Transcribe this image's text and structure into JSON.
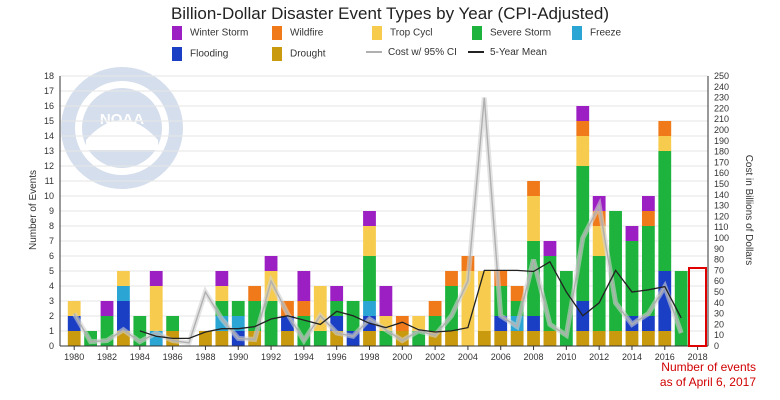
{
  "chart_data": {
    "type": "bar",
    "title": "Billion-Dollar Disaster Event Types by Year (CPI-Adjusted)",
    "ylabel_left": "Number of Events",
    "ylabel_right": "Cost in Billions of Dollars",
    "ylim_left": [
      0,
      18
    ],
    "ylim_right": [
      0,
      250
    ],
    "yticks_right": [
      0,
      10,
      20,
      30,
      40,
      50,
      60,
      70,
      80,
      90,
      100,
      110,
      120,
      130,
      140,
      150,
      160,
      170,
      180,
      190,
      200,
      210,
      220,
      230,
      240,
      250
    ],
    "x_tick_labels": [
      "1980",
      "1982",
      "1984",
      "1986",
      "1988",
      "1990",
      "1992",
      "1994",
      "1996",
      "1998",
      "2000",
      "2002",
      "2004",
      "2006",
      "2008",
      "2010",
      "2012",
      "2014",
      "2016",
      "2018"
    ],
    "stacked": true,
    "legend_position": "top",
    "years": [
      1980,
      1981,
      1982,
      1983,
      1984,
      1985,
      1986,
      1987,
      1988,
      1989,
      1990,
      1991,
      1992,
      1993,
      1994,
      1995,
      1996,
      1997,
      1998,
      1999,
      2000,
      2001,
      2002,
      2003,
      2004,
      2005,
      2006,
      2007,
      2008,
      2009,
      2010,
      2011,
      2012,
      2013,
      2014,
      2015,
      2016,
      2017
    ],
    "series": [
      {
        "name": "Drought",
        "color": "#c99a0e",
        "values": [
          1,
          0,
          0,
          1,
          0,
          0,
          1,
          0,
          1,
          1,
          0,
          1,
          0,
          1,
          0,
          0,
          1,
          0,
          1,
          0,
          1,
          0,
          1,
          1,
          0,
          1,
          1,
          1,
          1,
          1,
          0,
          1,
          1,
          1,
          1,
          1,
          1,
          0
        ]
      },
      {
        "name": "Flooding",
        "color": "#1a3fc4",
        "values": [
          1,
          0,
          0,
          2,
          0,
          0,
          0,
          0,
          0,
          0,
          1,
          0,
          0,
          1,
          0,
          0,
          1,
          1,
          1,
          0,
          0,
          0,
          0,
          0,
          0,
          0,
          1,
          0,
          1,
          0,
          0,
          2,
          0,
          0,
          1,
          1,
          4,
          0
        ]
      },
      {
        "name": "Freeze",
        "color": "#2aa5d4",
        "values": [
          0,
          0,
          0,
          1,
          0,
          1,
          0,
          0,
          0,
          1,
          1,
          0,
          0,
          0,
          0,
          0,
          0,
          0,
          1,
          0,
          0,
          0,
          0,
          0,
          0,
          0,
          0,
          1,
          0,
          0,
          0,
          0,
          0,
          0,
          0,
          0,
          0,
          0
        ]
      },
      {
        "name": "Severe Storm",
        "color": "#1db33c",
        "values": [
          0,
          1,
          2,
          0,
          2,
          0,
          1,
          0,
          0,
          1,
          1,
          2,
          3,
          0,
          2,
          1,
          1,
          2,
          3,
          1,
          0,
          1,
          1,
          3,
          0,
          0,
          2,
          1,
          5,
          5,
          5,
          9,
          5,
          8,
          5,
          6,
          8,
          5
        ]
      },
      {
        "name": "Trop Cycl",
        "color": "#f7cc4e",
        "values": [
          1,
          0,
          0,
          1,
          0,
          3,
          0,
          0,
          0,
          1,
          0,
          0,
          2,
          0,
          0,
          3,
          0,
          0,
          2,
          1,
          0,
          1,
          0,
          0,
          5,
          4,
          0,
          0,
          3,
          0,
          0,
          2,
          2,
          0,
          0,
          0,
          1,
          0
        ]
      },
      {
        "name": "Wildfire",
        "color": "#f07a1a",
        "values": [
          0,
          0,
          0,
          0,
          0,
          0,
          0,
          0,
          0,
          0,
          0,
          1,
          0,
          1,
          1,
          0,
          0,
          0,
          0,
          0,
          1,
          0,
          1,
          1,
          1,
          0,
          1,
          1,
          1,
          0,
          0,
          1,
          1,
          0,
          0,
          1,
          1,
          0
        ]
      },
      {
        "name": "Winter Storm",
        "color": "#9b1fc2",
        "values": [
          0,
          0,
          1,
          0,
          0,
          1,
          0,
          0,
          0,
          1,
          0,
          0,
          1,
          0,
          2,
          0,
          1,
          0,
          1,
          2,
          0,
          0,
          0,
          0,
          0,
          0,
          0,
          0,
          0,
          1,
          0,
          1,
          1,
          0,
          1,
          1,
          0,
          0
        ]
      }
    ],
    "line_series": [
      {
        "name": "Cost w/ 95% CI",
        "color": "#b0b0b0",
        "values": [
          30,
          4,
          5,
          15,
          4,
          12,
          5,
          3,
          50,
          25,
          7,
          6,
          60,
          30,
          5,
          28,
          12,
          9,
          25,
          15,
          5,
          14,
          10,
          28,
          60,
          230,
          28,
          18,
          80,
          20,
          10,
          100,
          130,
          40,
          20,
          30,
          55,
          12
        ]
      },
      {
        "name": "5-Year Mean",
        "color": "#222222",
        "values": [
          null,
          null,
          null,
          null,
          14,
          9,
          7,
          7,
          13,
          16,
          16,
          18,
          25,
          28,
          24,
          20,
          32,
          28,
          21,
          17,
          22,
          15,
          13,
          14,
          17,
          70,
          70,
          70,
          69,
          78,
          50,
          28,
          40,
          70,
          50,
          52,
          55,
          26
        ]
      }
    ]
  },
  "legend": [
    {
      "label": "Winter Storm",
      "color": "#9b1fc2",
      "kind": "bar"
    },
    {
      "label": "Wildfire",
      "color": "#f07a1a",
      "kind": "bar"
    },
    {
      "label": "Trop Cycl",
      "color": "#f7cc4e",
      "kind": "bar"
    },
    {
      "label": "Severe Storm",
      "color": "#1db33c",
      "kind": "bar"
    },
    {
      "label": "Freeze",
      "color": "#2aa5d4",
      "kind": "bar"
    },
    {
      "label": "Flooding",
      "color": "#1a3fc4",
      "kind": "bar"
    },
    {
      "label": "Drought",
      "color": "#c99a0e",
      "kind": "bar"
    },
    {
      "label": "Cost w/ 95% CI",
      "color": "#b0b0b0",
      "kind": "line"
    },
    {
      "label": "5-Year Mean",
      "color": "#222222",
      "kind": "line"
    }
  ],
  "annotation": {
    "line1": "Number of events",
    "line2": "as of April 6, 2017",
    "color": "#d00000"
  },
  "logo": {
    "text": "NOAA",
    "color": "#1f4f9a"
  }
}
